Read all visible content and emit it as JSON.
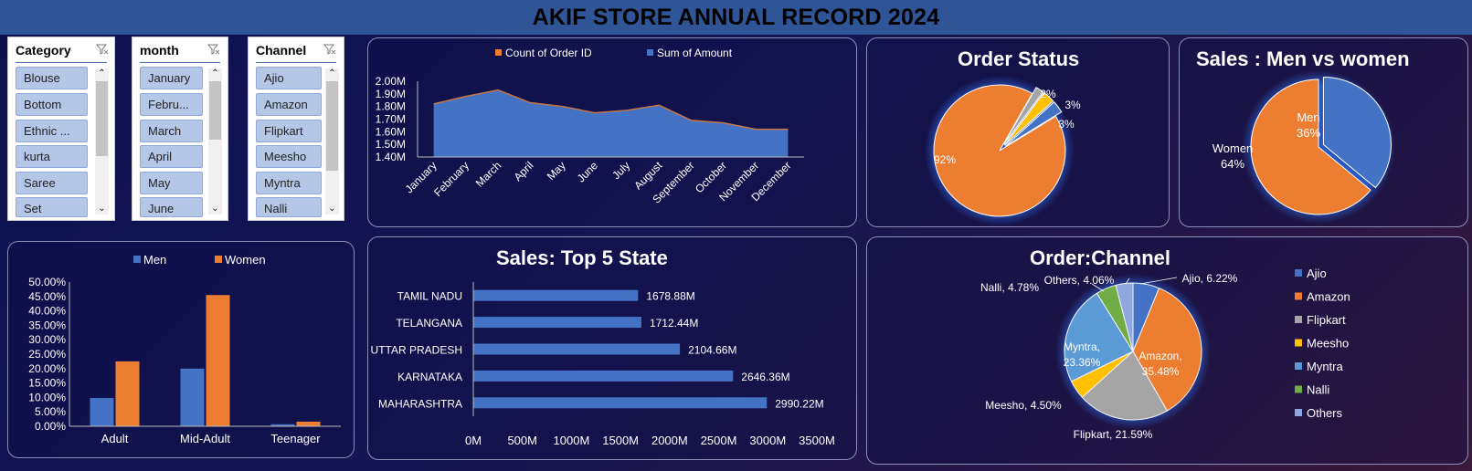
{
  "header": {
    "title": "AKIF STORE ANNUAL RECORD 2024"
  },
  "colors": {
    "blue": "#4472c4",
    "orange": "#ed7d31",
    "gray": "#a5a5a5",
    "gold": "#ffc000",
    "lightblue": "#5b9bd5",
    "green": "#70ad47",
    "periwinkle": "#8fa8e0",
    "header_bg": "#2f5597"
  },
  "slicers": {
    "category": {
      "title": "Category",
      "items": [
        "Blouse",
        "Bottom",
        "Ethnic ...",
        "kurta",
        "Saree",
        "Set"
      ]
    },
    "month": {
      "title": "month",
      "items": [
        "January",
        "Febru...",
        "March",
        "April",
        "May",
        "June"
      ]
    },
    "channel": {
      "title": "Channel",
      "items": [
        "Ajio",
        "Amazon",
        "Flipkart",
        "Meesho",
        "Myntra",
        "Nalli"
      ]
    }
  },
  "chart_data": [
    {
      "id": "monthly",
      "type": "area",
      "legend": [
        "Count of Order ID",
        "Sum of Amount"
      ],
      "categories": [
        "January",
        "February",
        "March",
        "April",
        "May",
        "June",
        "July",
        "August",
        "September",
        "October",
        "November",
        "December"
      ],
      "series": [
        {
          "name": "Sum of Amount",
          "values": [
            1.82,
            1.88,
            1.93,
            1.83,
            1.8,
            1.75,
            1.77,
            1.81,
            1.69,
            1.67,
            1.62,
            1.62
          ]
        }
      ],
      "yticks": [
        "2.00M",
        "1.90M",
        "1.80M",
        "1.70M",
        "1.60M",
        "1.50M",
        "1.40M"
      ],
      "ylim": [
        1.4,
        2.0
      ],
      "legend_position": "top"
    },
    {
      "id": "order_status",
      "type": "pie",
      "title": "Order Status",
      "values": [
        92,
        2,
        3,
        3
      ],
      "labels": [
        "92%",
        "2%",
        "3%",
        "3%"
      ]
    },
    {
      "id": "gender_sales",
      "type": "pie",
      "title": "Sales : Men vs women",
      "slices": [
        {
          "name": "Men",
          "value": 36,
          "label": "36%"
        },
        {
          "name": "Women",
          "value": 64,
          "label": "64%"
        }
      ]
    },
    {
      "id": "age_group",
      "type": "bar",
      "categories": [
        "Adult",
        "Mid-Adult",
        "Teenager"
      ],
      "series": [
        {
          "name": "Men",
          "values": [
            9.8,
            20.0,
            0.7
          ]
        },
        {
          "name": "Women",
          "values": [
            22.5,
            45.5,
            1.6
          ]
        }
      ],
      "yticks": [
        "50.00%",
        "45.00%",
        "40.00%",
        "35.00%",
        "30.00%",
        "25.00%",
        "20.00%",
        "15.00%",
        "10.00%",
        "5.00%",
        "0.00%"
      ],
      "ylim": [
        0,
        50
      ],
      "legend_position": "top"
    },
    {
      "id": "top_states",
      "type": "bar",
      "title": "Sales: Top 5 State",
      "categories": [
        "TAMIL NADU",
        "TELANGANA",
        "UTTAR PRADESH",
        "KARNATAKA",
        "MAHARASHTRA"
      ],
      "values": [
        1678.88,
        1712.44,
        2104.66,
        2646.36,
        2990.22
      ],
      "value_labels": [
        "1678.88M",
        "1712.44M",
        "2104.66M",
        "2646.36M",
        "2990.22M"
      ],
      "xticks": [
        "0M",
        "500M",
        "1000M",
        "1500M",
        "2000M",
        "2500M",
        "3000M",
        "3500M"
      ],
      "xlim": [
        0,
        3500
      ]
    },
    {
      "id": "channel_share",
      "type": "pie",
      "title": "Order:Channel",
      "slices": [
        {
          "name": "Ajio",
          "value": 6.22,
          "label": "Ajio, 6.22%"
        },
        {
          "name": "Amazon",
          "value": 35.48,
          "label": "Amazon, 35.48%"
        },
        {
          "name": "Flipkart",
          "value": 21.59,
          "label": "Flipkart, 21.59%"
        },
        {
          "name": "Meesho",
          "value": 4.5,
          "label": "Meesho, 4.50%"
        },
        {
          "name": "Myntra",
          "value": 23.36,
          "label": "Myntra, 23.36%"
        },
        {
          "name": "Nalli",
          "value": 4.78,
          "label": "Nalli, 4.78%"
        },
        {
          "name": "Others",
          "value": 4.06,
          "label": "Others, 4.06%"
        }
      ],
      "legend": [
        "Ajio",
        "Amazon",
        "Flipkart",
        "Meesho",
        "Myntra",
        "Nalli",
        "Others"
      ],
      "legend_position": "right"
    }
  ]
}
